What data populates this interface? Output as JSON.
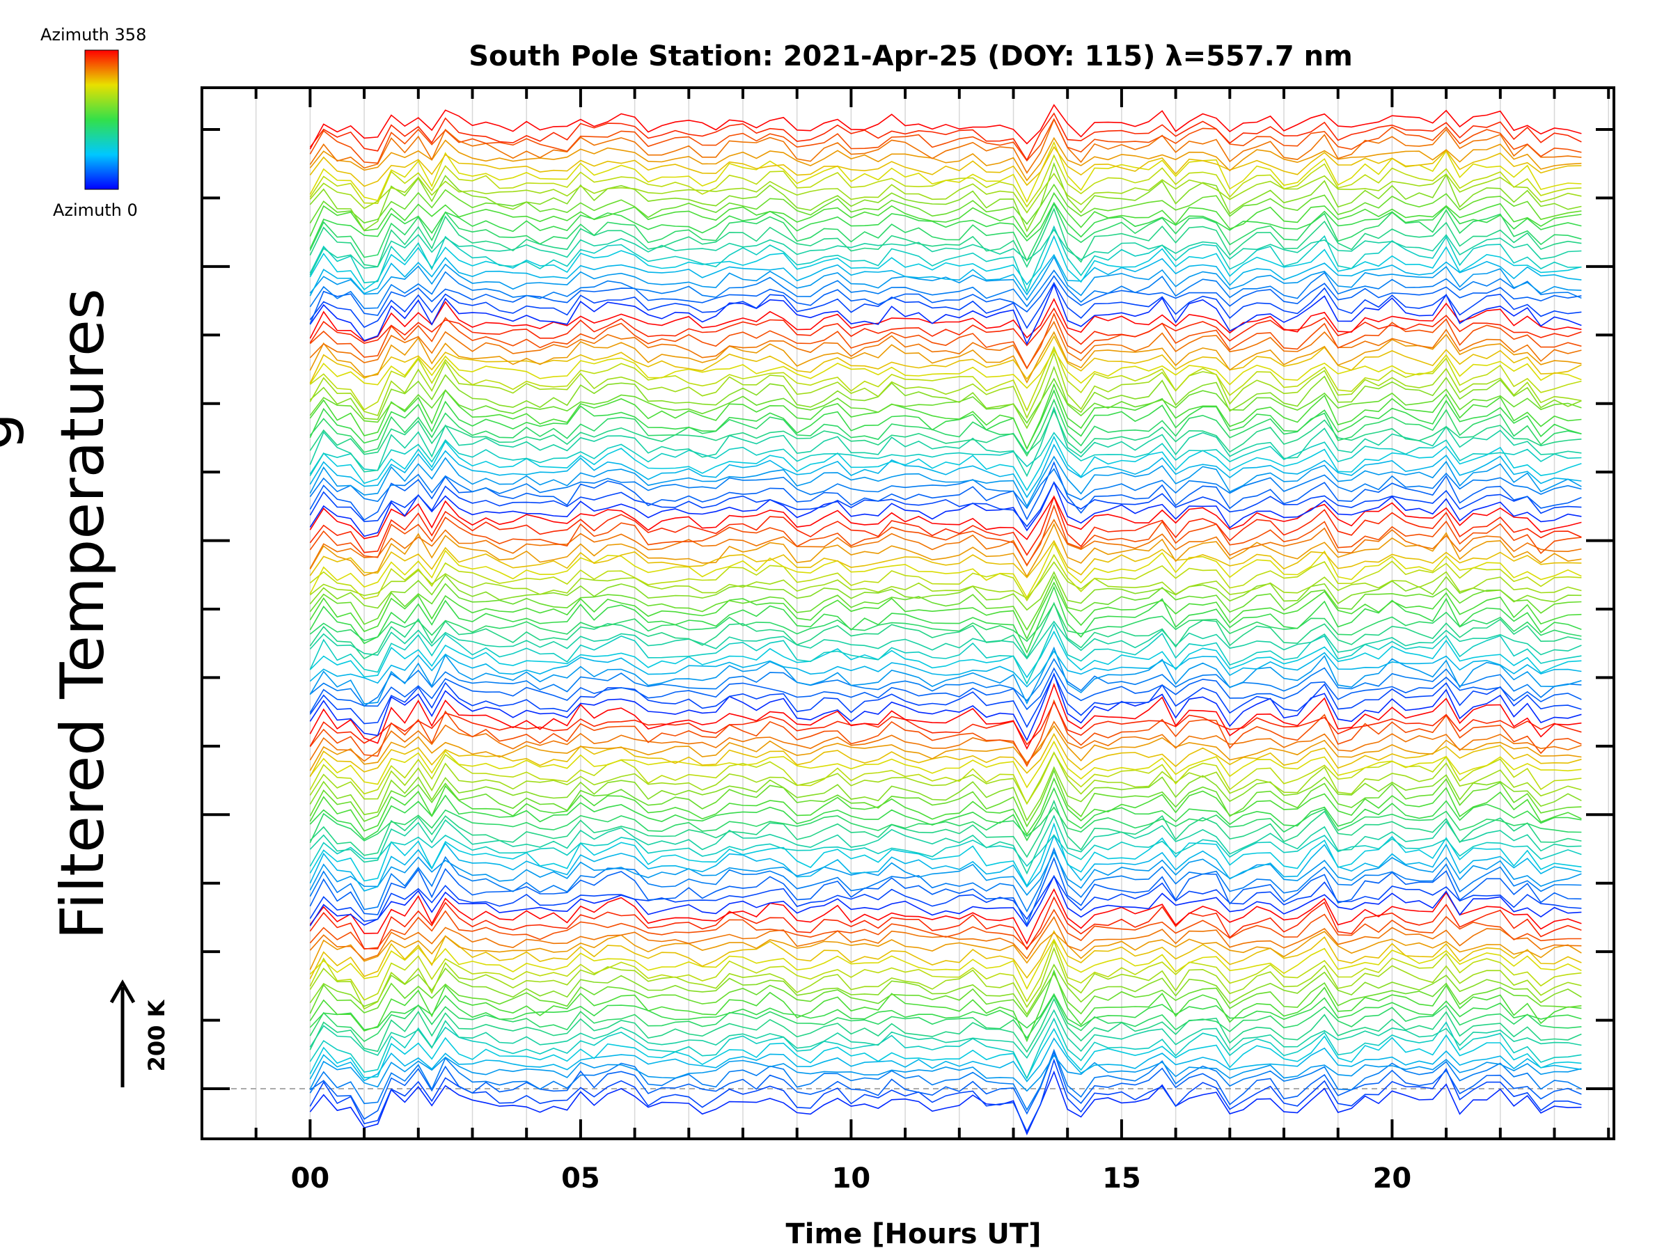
{
  "chart_data": {
    "type": "line",
    "title": "South Pole Station: 2021-Apr-25 (DOY: 115) λ=557.7 nm",
    "xlabel": "Time [Hours UT]",
    "ylabel": "Filtered Temperatures",
    "ylabel_partial": "g",
    "x_tick_labels": [
      "00",
      "05",
      "10",
      "15",
      "20"
    ],
    "x_tick_values": [
      0,
      5,
      10,
      15,
      20
    ],
    "xlim": [
      -2,
      24.1
    ],
    "x_start": 0.0,
    "x_end": 23.4,
    "sample_step_hours": 0.25,
    "y_offset_levels": 15,
    "scale_bar_label": "200 K",
    "scale_bar_value": 200,
    "colorbar": {
      "top_label": "Azimuth  358",
      "bottom_label": "Azimuth  0",
      "min": 0,
      "max": 358,
      "colormap": "rainbow"
    },
    "azimuth_groups": 5,
    "traces_per_group": 24,
    "description_of_series": "Stacked azimuthal temperature traces colored by azimuth (0 blue to 358 red), five repeated azimuth sweeps"
  }
}
